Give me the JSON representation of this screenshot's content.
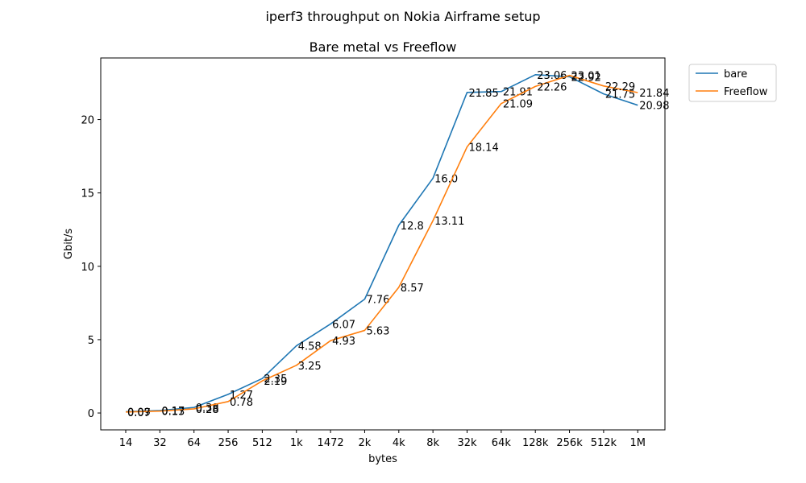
{
  "chart_data": {
    "type": "line",
    "suptitle": "iperf3 throughput on Nokia Airframe setup",
    "title": "Bare metal vs Freeflow",
    "xlabel": "bytes",
    "ylabel": "Gbit/s",
    "categories": [
      "14",
      "32",
      "64",
      "256",
      "512",
      "1k",
      "1472",
      "2k",
      "4k",
      "8k",
      "32k",
      "64k",
      "128k",
      "256k",
      "512k",
      "1M"
    ],
    "series": [
      {
        "name": "bare",
        "color": "#1f77b4",
        "values": [
          0.09,
          0.17,
          0.38,
          1.27,
          2.35,
          4.58,
          6.07,
          7.76,
          12.8,
          16.0,
          21.85,
          21.91,
          23.06,
          22.92,
          21.75,
          20.98
        ],
        "labels": [
          "0.09",
          "0.17",
          "0.38",
          "1.27",
          "2.35",
          "4.58",
          "6.07",
          "7.76",
          "12.8",
          "16.0",
          "21.85",
          "21.91",
          "23.06",
          "22.92",
          "21.75",
          "20.98"
        ]
      },
      {
        "name": "Freeflow",
        "color": "#ff7f0e",
        "values": [
          0.07,
          0.13,
          0.28,
          0.78,
          2.19,
          3.25,
          4.93,
          5.63,
          8.57,
          13.11,
          18.14,
          21.09,
          22.26,
          23.01,
          22.29,
          21.84
        ],
        "labels": [
          "0.07",
          "0.13",
          "0.28",
          "0.78",
          "2.19",
          "3.25",
          "4.93",
          "5.63",
          "8.57",
          "13.11",
          "18.14",
          "21.09",
          "22.26",
          "23.01",
          "22.29",
          "21.84"
        ]
      }
    ],
    "yticks": [
      "0",
      "5",
      "10",
      "15",
      "20"
    ],
    "ylim": [
      -1.15,
      24.2
    ],
    "grid": false,
    "legend_position": "outside-top-right"
  }
}
